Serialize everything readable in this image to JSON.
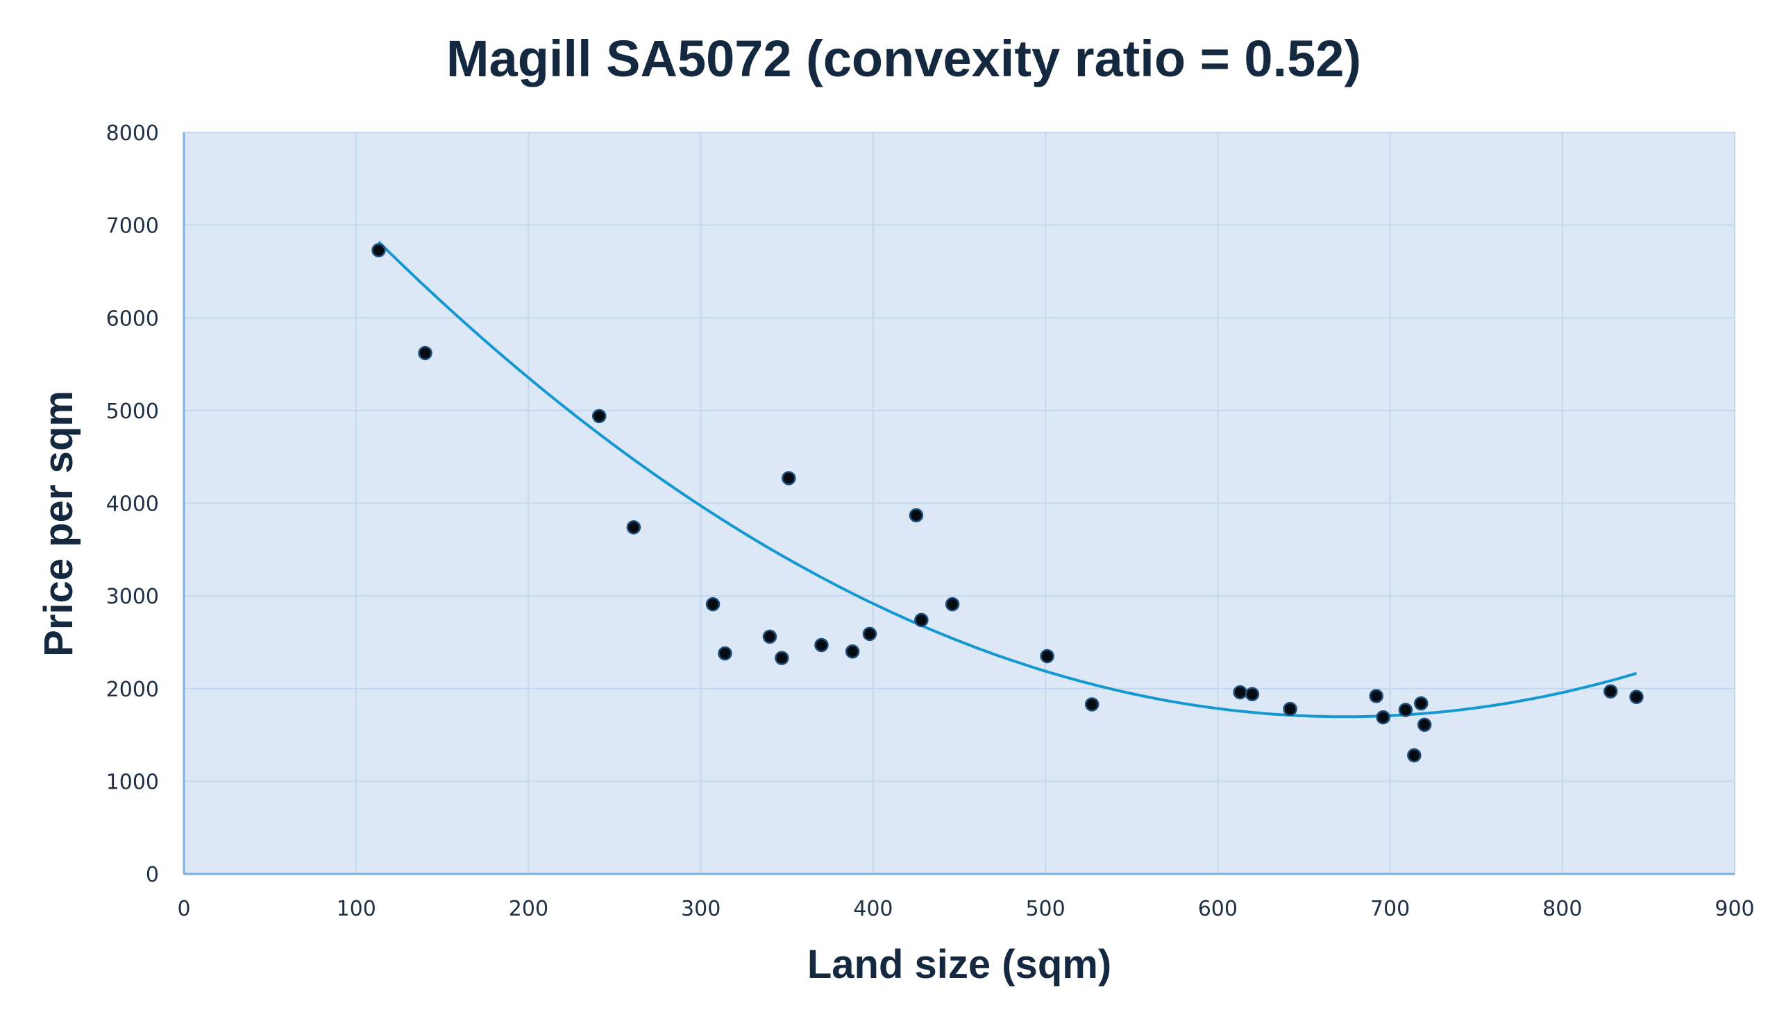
{
  "chart_data": {
    "type": "scatter",
    "title": "Magill SA5072 (convexity ratio = 0.52)",
    "xlabel": "Land size (sqm)",
    "ylabel": "Price per sqm",
    "xlim": [
      0,
      900
    ],
    "ylim": [
      0,
      8000
    ],
    "x_ticks": [
      "0",
      "100",
      "200",
      "300",
      "400",
      "500",
      "600",
      "700",
      "800",
      "900"
    ],
    "y_ticks": [
      "0",
      "1000",
      "2000",
      "3000",
      "4000",
      "5000",
      "6000",
      "7000",
      "8000"
    ],
    "grid": true,
    "legend": "none",
    "colors": {
      "plot_background": "#dce8f6",
      "grid": "#c3d7ee",
      "axis_line": "#7fb1e0",
      "point_fill": "#050b12",
      "point_stroke": "#1f4f7a",
      "trendline": "#1597d2",
      "text": "#14283f"
    },
    "points": [
      {
        "x": 113,
        "y": 6730
      },
      {
        "x": 140,
        "y": 5620
      },
      {
        "x": 241,
        "y": 4940
      },
      {
        "x": 261,
        "y": 3740
      },
      {
        "x": 307,
        "y": 2910
      },
      {
        "x": 314,
        "y": 2380
      },
      {
        "x": 340,
        "y": 2560
      },
      {
        "x": 347,
        "y": 2330
      },
      {
        "x": 351,
        "y": 4270
      },
      {
        "x": 370,
        "y": 2470
      },
      {
        "x": 388,
        "y": 2400
      },
      {
        "x": 398,
        "y": 2590
      },
      {
        "x": 425,
        "y": 3870
      },
      {
        "x": 428,
        "y": 2740
      },
      {
        "x": 446,
        "y": 2910
      },
      {
        "x": 501,
        "y": 2350
      },
      {
        "x": 527,
        "y": 1830
      },
      {
        "x": 613,
        "y": 1960
      },
      {
        "x": 620,
        "y": 1940
      },
      {
        "x": 642,
        "y": 1780
      },
      {
        "x": 692,
        "y": 1920
      },
      {
        "x": 696,
        "y": 1690
      },
      {
        "x": 709,
        "y": 1770
      },
      {
        "x": 714,
        "y": 1280
      },
      {
        "x": 718,
        "y": 1840
      },
      {
        "x": 720,
        "y": 1610
      },
      {
        "x": 828,
        "y": 1970
      },
      {
        "x": 843,
        "y": 1910
      }
    ],
    "trendline": {
      "type": "polynomial",
      "order": 2,
      "x_range": [
        113,
        843
      ],
      "coefficients": [
        9093,
        -21.96,
        0.0163
      ]
    }
  }
}
